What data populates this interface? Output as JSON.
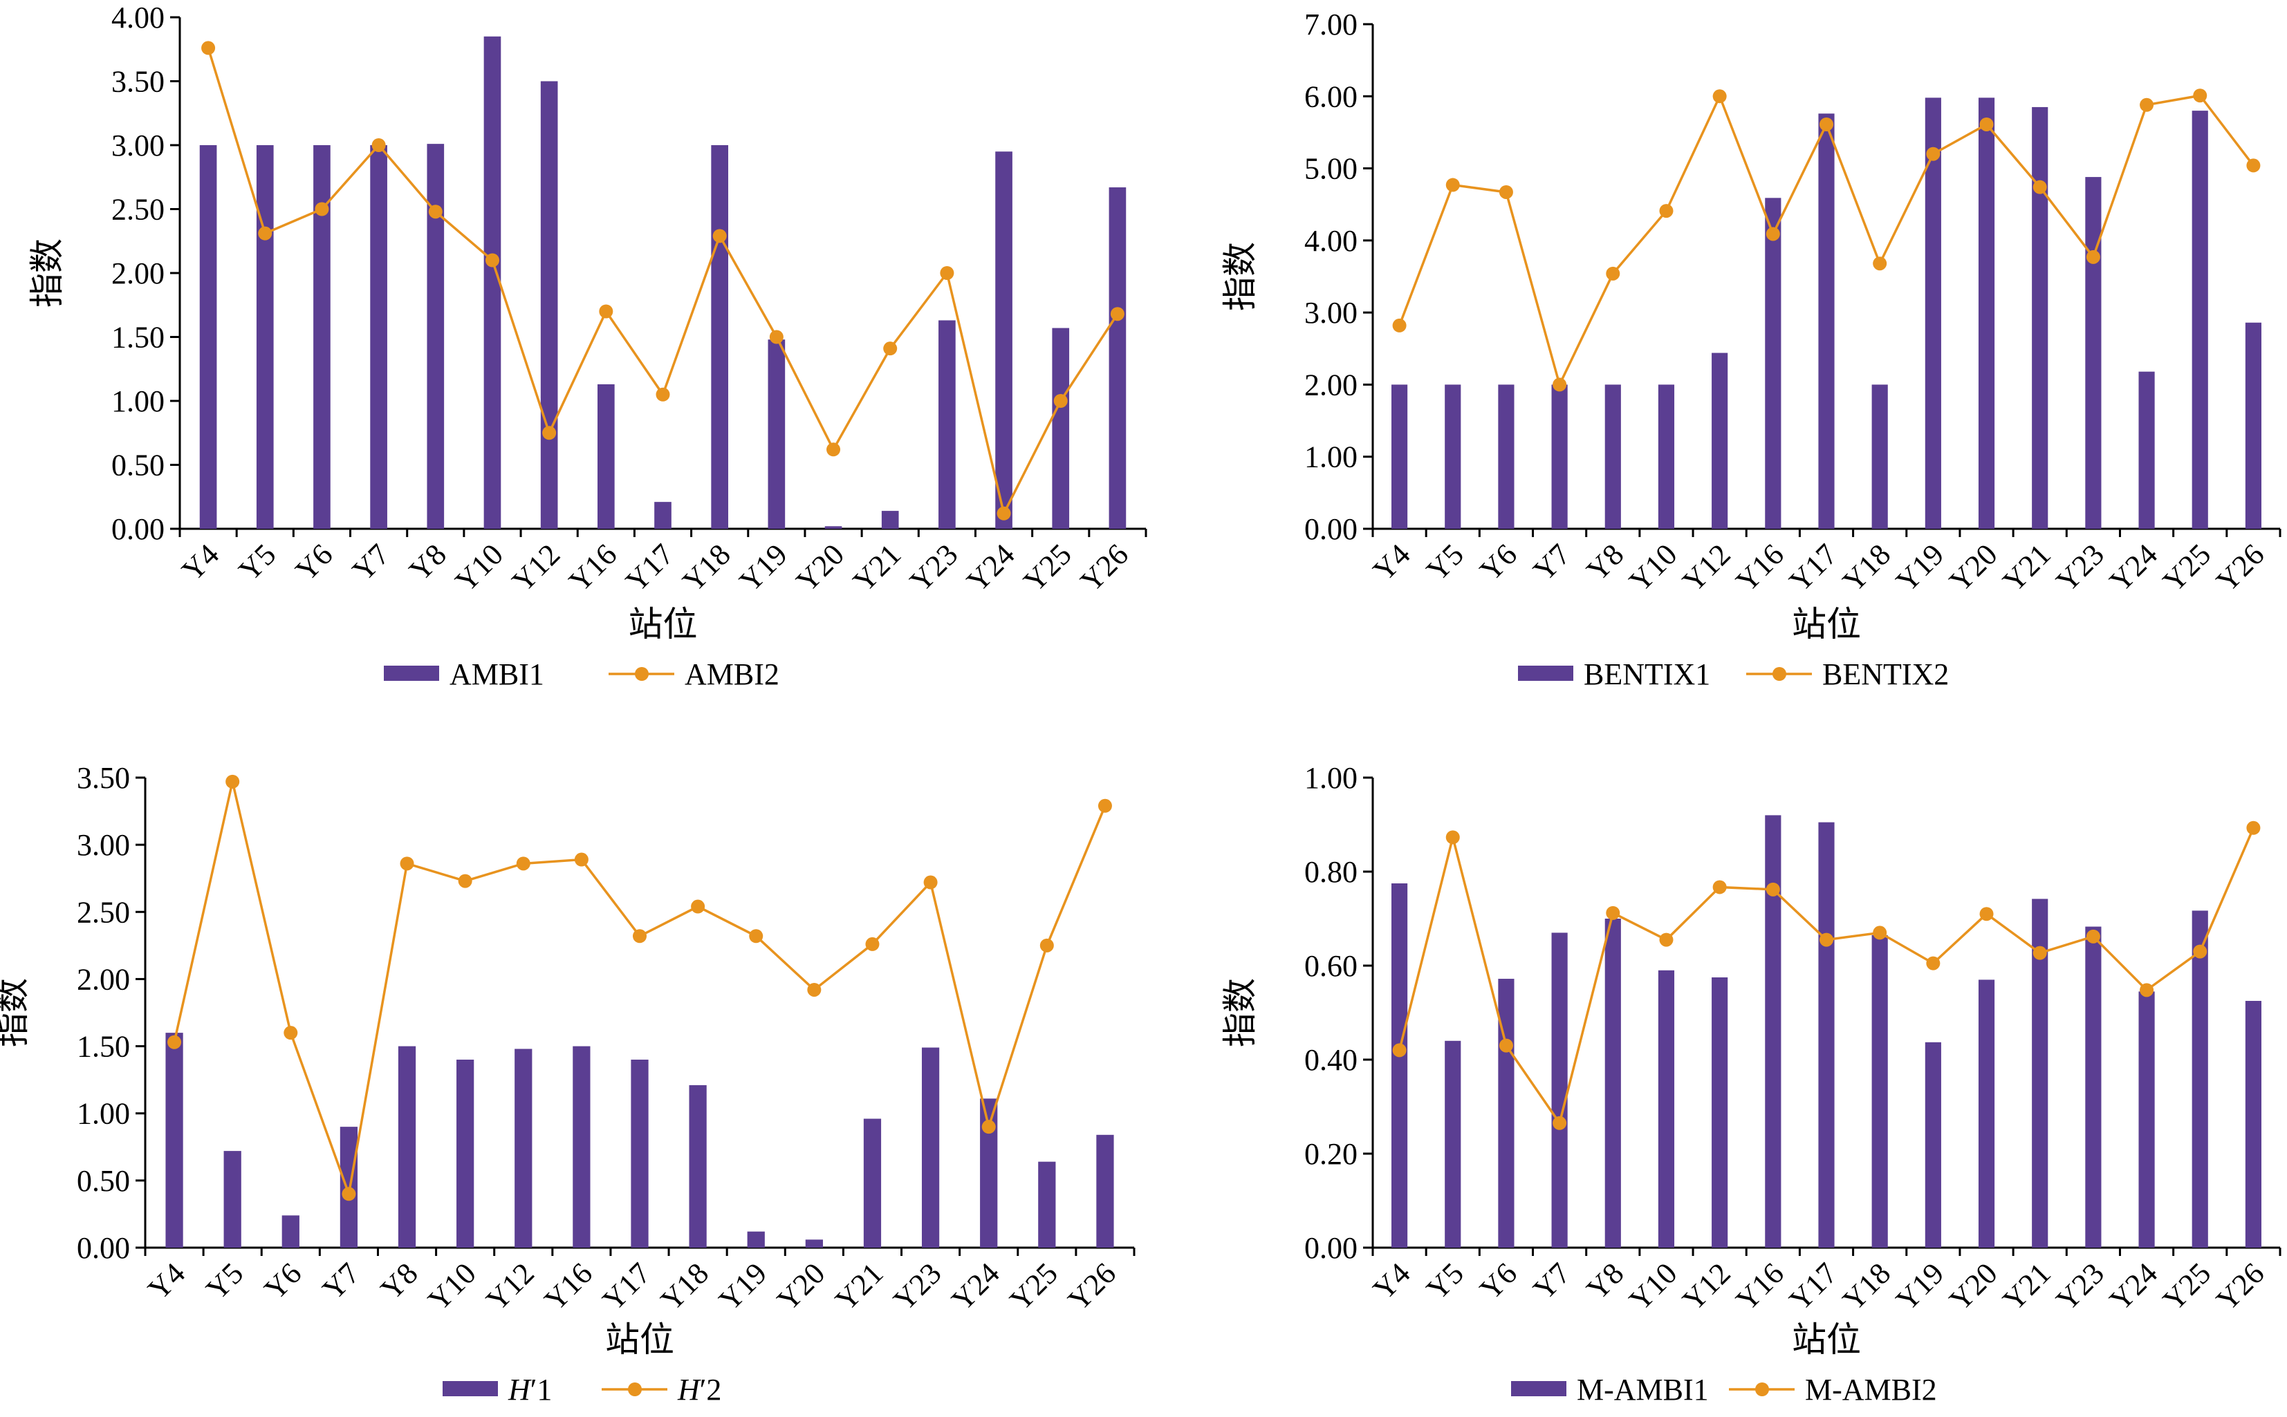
{
  "colors": {
    "bar": "#5b3e92",
    "line": "#e8931e",
    "axis": "#000000"
  },
  "charts": [
    {
      "type": "bar",
      "categories": [
        "Y4",
        "Y5",
        "Y6",
        "Y7",
        "Y8",
        "Y10",
        "Y12",
        "Y16",
        "Y17",
        "Y18",
        "Y19",
        "Y20",
        "Y21",
        "Y23",
        "Y24",
        "Y25",
        "Y26"
      ],
      "series": [
        {
          "name": "AMBI1",
          "type": "bar",
          "values": [
            3.0,
            3.0,
            3.0,
            3.0,
            3.01,
            3.85,
            3.5,
            1.13,
            0.21,
            3.0,
            1.48,
            0.02,
            0.14,
            1.63,
            2.95,
            1.57,
            2.67
          ]
        },
        {
          "name": "AMBI2",
          "type": "line",
          "values": [
            3.76,
            2.31,
            2.5,
            3.0,
            2.48,
            2.1,
            0.75,
            1.7,
            1.05,
            2.29,
            1.5,
            0.62,
            1.41,
            2.0,
            0.12,
            1.0,
            1.68
          ]
        }
      ],
      "xlabel": "站位",
      "ylabel": "指数",
      "ylim": [
        0,
        4
      ],
      "yticks": [
        "0.00",
        "0.50",
        "1.00",
        "1.50",
        "2.00",
        "2.50",
        "3.00",
        "3.50",
        "4.00"
      ]
    },
    {
      "type": "bar",
      "categories": [
        "Y4",
        "Y5",
        "Y6",
        "Y7",
        "Y8",
        "Y10",
        "Y12",
        "Y16",
        "Y17",
        "Y18",
        "Y19",
        "Y20",
        "Y21",
        "Y23",
        "Y24",
        "Y25",
        "Y26"
      ],
      "series": [
        {
          "name": "BENTIX1",
          "type": "bar",
          "values": [
            2.0,
            2.0,
            2.0,
            2.0,
            2.0,
            2.0,
            2.44,
            4.59,
            5.76,
            2.0,
            5.98,
            5.98,
            5.85,
            4.88,
            2.18,
            5.8,
            2.86
          ]
        },
        {
          "name": "BENTIX2",
          "type": "line",
          "values": [
            2.82,
            4.77,
            4.67,
            2.0,
            3.54,
            4.41,
            6.0,
            4.09,
            5.61,
            3.68,
            5.2,
            5.61,
            4.74,
            3.77,
            5.88,
            6.01,
            5.04
          ]
        }
      ],
      "xlabel": "站位",
      "ylabel": "指数",
      "ylim": [
        0,
        7
      ],
      "yticks": [
        "0.00",
        "1.00",
        "2.00",
        "3.00",
        "4.00",
        "5.00",
        "6.00",
        "7.00"
      ]
    },
    {
      "type": "bar",
      "categories": [
        "Y4",
        "Y5",
        "Y6",
        "Y7",
        "Y8",
        "Y10",
        "Y12",
        "Y16",
        "Y17",
        "Y18",
        "Y19",
        "Y20",
        "Y21",
        "Y23",
        "Y24",
        "Y25",
        "Y26"
      ],
      "series": [
        {
          "name": "H'1",
          "label_prefix": "H",
          "label_suffix": "′1",
          "type": "bar",
          "values": [
            1.6,
            0.72,
            0.24,
            0.9,
            1.5,
            1.4,
            1.48,
            1.5,
            1.4,
            1.21,
            0.12,
            0.06,
            0.96,
            1.49,
            1.11,
            0.64,
            0.84
          ]
        },
        {
          "name": "H'2",
          "label_prefix": "H",
          "label_suffix": "′2",
          "type": "line",
          "values": [
            1.53,
            3.47,
            1.6,
            0.4,
            2.86,
            2.73,
            2.86,
            2.89,
            2.32,
            2.54,
            2.32,
            1.92,
            2.26,
            2.72,
            0.9,
            2.25,
            3.29
          ]
        }
      ],
      "xlabel": "站位",
      "ylabel": "指数",
      "ylim": [
        0,
        3.5
      ],
      "yticks": [
        "0.00",
        "0.50",
        "1.00",
        "1.50",
        "2.00",
        "2.50",
        "3.00",
        "3.50"
      ]
    },
    {
      "type": "bar",
      "categories": [
        "Y4",
        "Y5",
        "Y6",
        "Y7",
        "Y8",
        "Y10",
        "Y12",
        "Y16",
        "Y17",
        "Y18",
        "Y19",
        "Y20",
        "Y21",
        "Y23",
        "Y24",
        "Y25",
        "Y26"
      ],
      "series": [
        {
          "name": "M-AMBI1",
          "type": "bar",
          "values": [
            0.775,
            0.44,
            0.572,
            0.67,
            0.7,
            0.59,
            0.575,
            0.92,
            0.905,
            0.665,
            0.437,
            0.57,
            0.742,
            0.683,
            0.545,
            0.717,
            0.525
          ]
        },
        {
          "name": "M-AMBI2",
          "type": "line",
          "values": [
            0.42,
            0.873,
            0.43,
            0.265,
            0.712,
            0.655,
            0.767,
            0.762,
            0.655,
            0.67,
            0.605,
            0.71,
            0.627,
            0.662,
            0.548,
            0.63,
            0.893
          ]
        }
      ],
      "xlabel": "站位",
      "ylabel": "指数",
      "ylim": [
        0,
        1
      ],
      "yticks": [
        "0.00",
        "0.20",
        "0.40",
        "0.60",
        "0.80",
        "1.00"
      ]
    }
  ]
}
